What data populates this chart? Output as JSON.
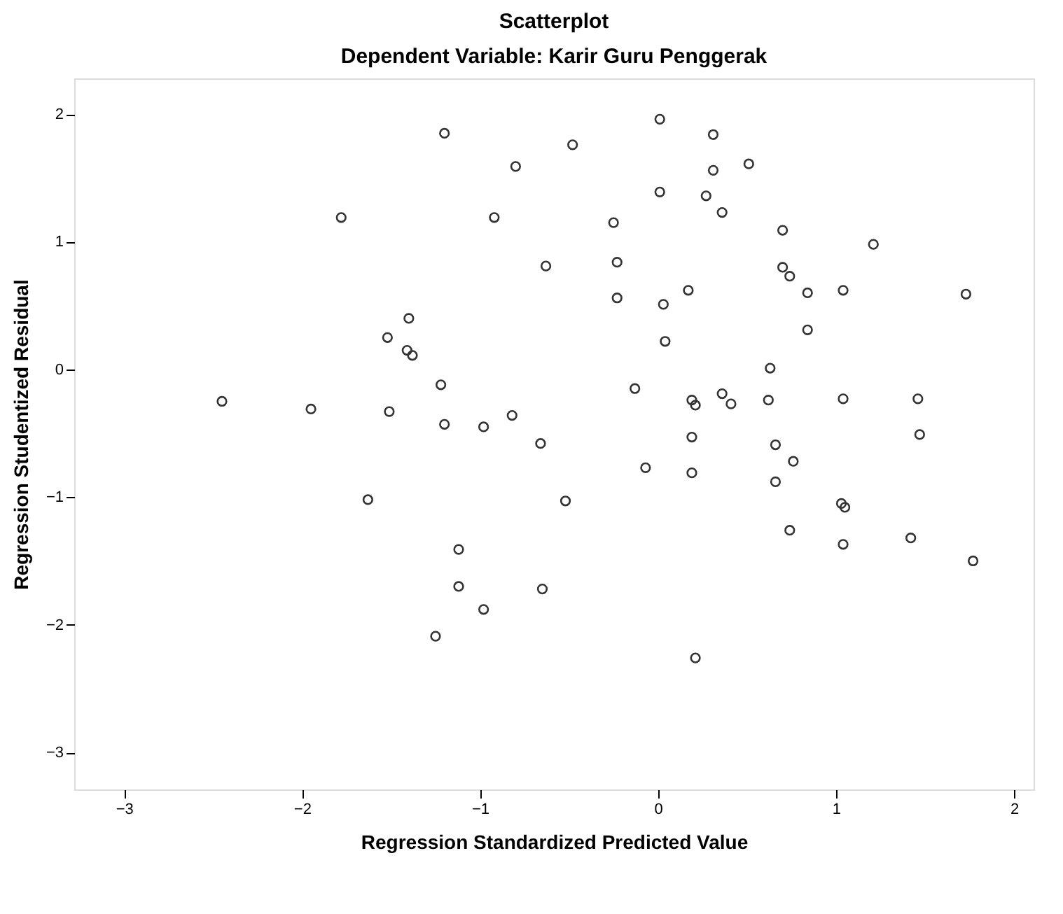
{
  "chart_data": {
    "type": "scatter",
    "title": "Scatterplot",
    "subtitle": "Dependent Variable: Karir Guru Penggerak",
    "xlabel": "Regression Standardized Predicted Value",
    "ylabel": "Regression Studentized Residual",
    "xlim": [
      -3.28,
      2.11
    ],
    "ylim": [
      -3.29,
      2.28
    ],
    "xticks": [
      -3,
      -2,
      -1,
      0,
      1,
      2
    ],
    "yticks": [
      -3,
      -2,
      -1,
      0,
      1,
      2
    ],
    "grid": false,
    "marker": "circle",
    "color": "#333333",
    "x": [
      -2.45,
      -1.95,
      -1.78,
      -1.63,
      -1.52,
      -1.51,
      -1.4,
      -1.41,
      -1.38,
      -1.22,
      -1.2,
      -1.2,
      -1.12,
      -1.12,
      -1.25,
      -0.98,
      -0.98,
      -0.92,
      -0.82,
      -0.8,
      -0.66,
      -0.65,
      -0.63,
      -0.52,
      -0.48,
      -0.25,
      -0.23,
      -0.23,
      -0.13,
      -0.07,
      0.01,
      0.01,
      0.03,
      0.04,
      0.17,
      0.19,
      0.21,
      0.19,
      0.19,
      0.21,
      0.27,
      0.31,
      0.31,
      0.36,
      0.36,
      0.41,
      0.51,
      0.62,
      0.63,
      0.66,
      0.66,
      0.7,
      0.7,
      0.74,
      0.74,
      0.76,
      0.84,
      0.84,
      1.03,
      1.05,
      1.04,
      1.04,
      1.04,
      1.21,
      1.42,
      1.46,
      1.47,
      1.73,
      1.77
    ],
    "values": [
      -0.25,
      -0.31,
      1.19,
      -1.02,
      0.25,
      -0.33,
      0.4,
      0.15,
      0.11,
      -0.12,
      1.85,
      -0.43,
      -1.41,
      -1.7,
      -2.09,
      -0.45,
      -1.88,
      1.19,
      -0.36,
      1.59,
      -0.58,
      -1.72,
      0.81,
      -1.03,
      1.76,
      1.15,
      0.84,
      0.56,
      -0.15,
      -0.77,
      1.96,
      1.39,
      0.51,
      0.22,
      0.62,
      -0.24,
      -0.28,
      -0.53,
      -0.81,
      -2.26,
      1.36,
      1.84,
      1.56,
      1.23,
      -0.19,
      -0.27,
      1.61,
      -0.24,
      0.01,
      -0.59,
      -0.88,
      1.09,
      0.8,
      0.73,
      -1.26,
      -0.72,
      0.6,
      0.31,
      -1.05,
      -1.08,
      0.62,
      -0.23,
      -1.37,
      0.98,
      -1.32,
      -0.23,
      -0.51,
      0.59,
      -1.5
    ]
  }
}
